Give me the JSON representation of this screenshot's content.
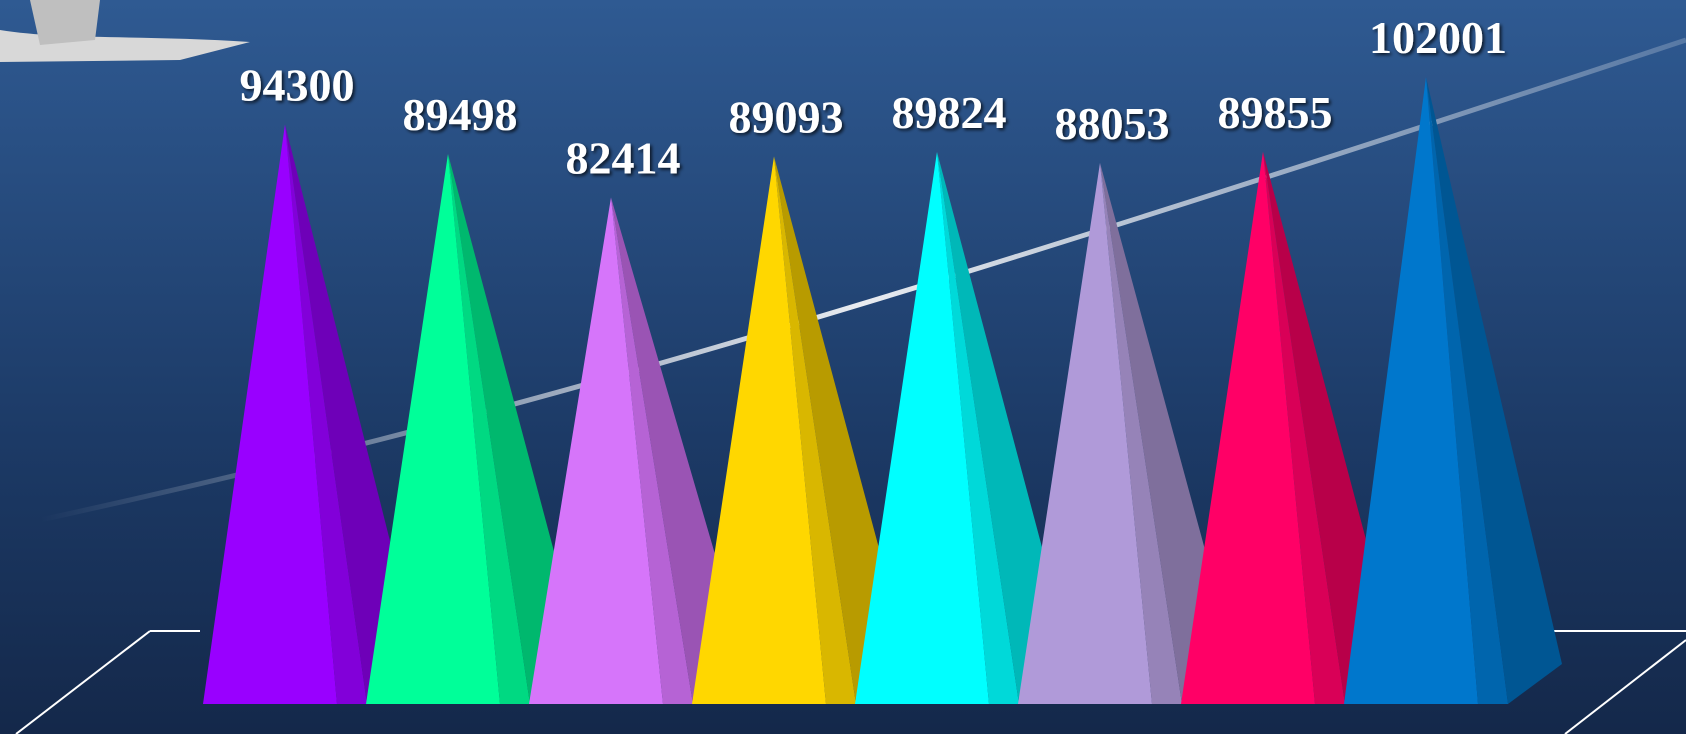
{
  "chart_data": {
    "type": "pyramid",
    "values": [
      94300,
      89498,
      82414,
      89093,
      89824,
      88053,
      89855,
      102001
    ],
    "colors": [
      "#9900ff",
      "#00ff99",
      "#d675fa",
      "#ffd700",
      "#00ffff",
      "#b09ad9",
      "#ff0066",
      "#0077cc"
    ],
    "ylim": [
      0,
      110000
    ]
  }
}
